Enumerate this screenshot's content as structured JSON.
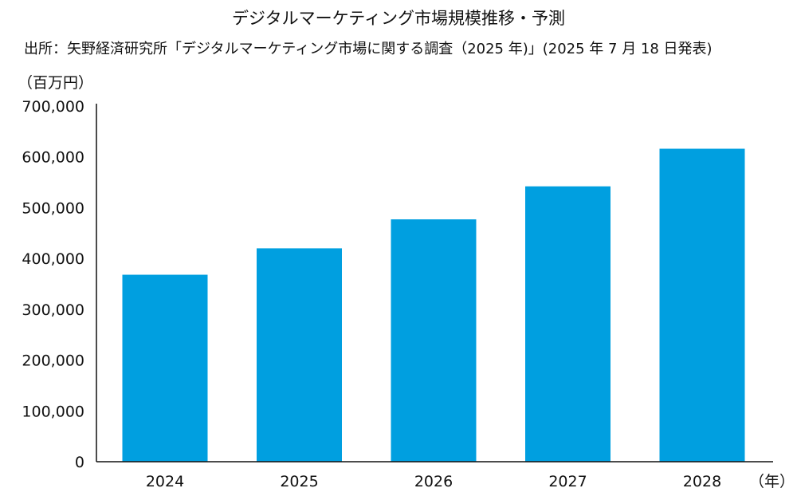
{
  "chart_data": {
    "type": "bar",
    "title": "デジタルマーケティング市場規模推移・予測",
    "source": "出所：矢野経済研究所「デジタルマーケティング市場に関する調査（2025 年)」(2025 年 7 月 18 日発表)",
    "y_unit": "（百万円）",
    "x_unit": "（年）",
    "categories": [
      "2024",
      "2025",
      "2026",
      "2027",
      "2028"
    ],
    "values": [
      368000,
      420000,
      477000,
      542000,
      616000
    ],
    "ylim": [
      0,
      700000
    ],
    "yticks": [
      0,
      100000,
      200000,
      300000,
      400000,
      500000,
      600000,
      700000
    ],
    "ytick_labels": [
      "0",
      "100,000",
      "200,000",
      "300,000",
      "400,000",
      "500,000",
      "600,000",
      "700,000"
    ],
    "bar_color": "#009fe0",
    "grid": false,
    "legend": "none"
  }
}
